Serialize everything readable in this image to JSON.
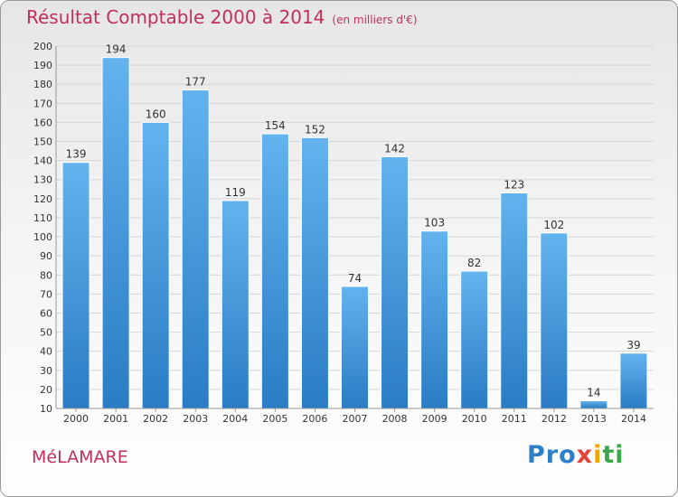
{
  "header": {
    "title": "Résultat Comptable 2000 à 2014",
    "subtitle": "(en milliers d'€)"
  },
  "footer": {
    "commune": "MéLAMARE",
    "logo": [
      "Pro",
      "x",
      "i",
      "ti"
    ]
  },
  "colors": {
    "bar_top": "#62b3ee",
    "bar_bottom": "#2a7cc4",
    "title": "#c0305a"
  },
  "chart_data": {
    "type": "bar",
    "title": "Résultat Comptable 2000 à 2014",
    "subtitle": "(en milliers d'€)",
    "categories": [
      "2000",
      "2001",
      "2002",
      "2003",
      "2004",
      "2005",
      "2006",
      "2007",
      "2008",
      "2009",
      "2010",
      "2011",
      "2012",
      "2013",
      "2014"
    ],
    "values": [
      139,
      194,
      160,
      177,
      119,
      154,
      152,
      74,
      142,
      103,
      82,
      123,
      102,
      14,
      39
    ],
    "ylim": [
      10,
      200
    ],
    "yticks": [
      10,
      20,
      30,
      40,
      50,
      60,
      70,
      80,
      90,
      100,
      110,
      120,
      130,
      140,
      150,
      160,
      170,
      180,
      190,
      200
    ],
    "grid": true,
    "xlabel": "",
    "ylabel": ""
  }
}
